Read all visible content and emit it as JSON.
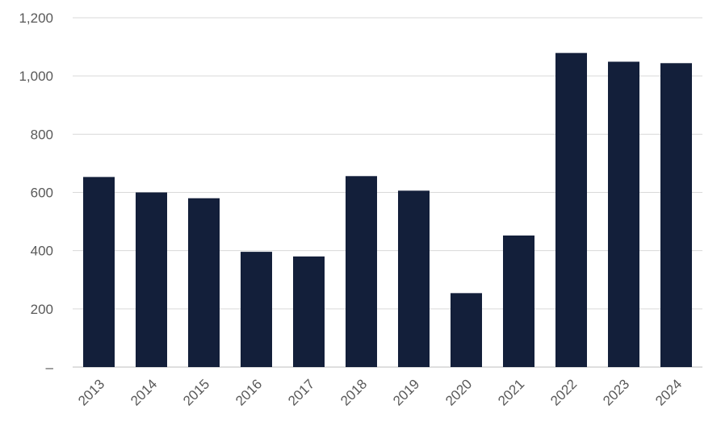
{
  "chart_data": {
    "type": "bar",
    "title": "",
    "xlabel": "",
    "ylabel": "",
    "categories": [
      "2013",
      "2014",
      "2015",
      "2016",
      "2017",
      "2018",
      "2019",
      "2020",
      "2021",
      "2022",
      "2023",
      "2024"
    ],
    "values": [
      653,
      600,
      580,
      396,
      380,
      656,
      606,
      254,
      452,
      1079,
      1049,
      1044
    ],
    "ylim": [
      0,
      1200
    ],
    "yticks": [
      0,
      200,
      400,
      600,
      800,
      1000,
      1200
    ],
    "ytick_labels": [
      "–",
      "200",
      "400",
      "600",
      "800",
      "1,000",
      "1,200"
    ],
    "grid": true,
    "legend": "none",
    "colors": {
      "bar": "#131f3a",
      "grid": "#d9d9d9",
      "text": "#595959"
    }
  }
}
